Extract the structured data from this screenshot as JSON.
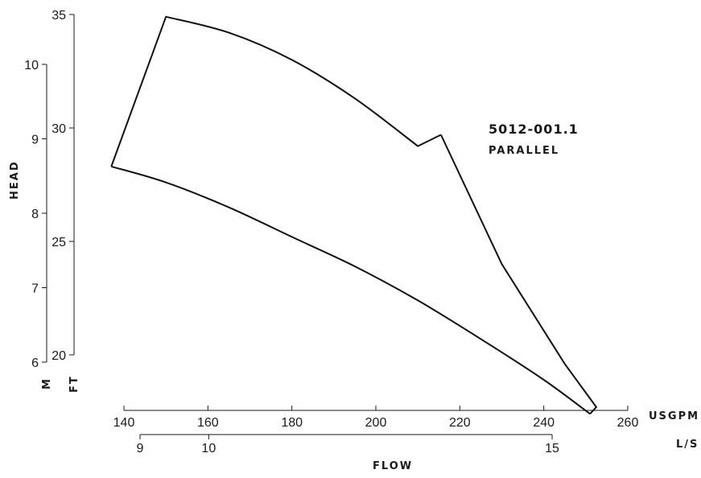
{
  "chart_data": {
    "type": "line",
    "title": "",
    "annotation": {
      "model": "5012-001.1",
      "mode": "PARALLEL"
    },
    "y_title": "HEAD",
    "x_title": "FLOW",
    "y_axes": [
      {
        "unit": "FT",
        "range": [
          20,
          35
        ],
        "ticks": [
          20,
          25,
          30,
          35
        ]
      },
      {
        "unit": "M",
        "range": [
          6,
          10
        ],
        "ticks": [
          6,
          7,
          8,
          9,
          10
        ]
      }
    ],
    "x_axes": [
      {
        "unit": "USGPM",
        "range": [
          140,
          260
        ],
        "ticks": [
          140,
          160,
          180,
          200,
          220,
          240,
          260
        ]
      },
      {
        "unit": "L/S",
        "range": [
          9,
          15
        ],
        "ticks": [
          9,
          10,
          15
        ]
      }
    ],
    "series": [
      {
        "role": "upper-boundary",
        "x_unit": "USGPM",
        "y_unit": "FT",
        "points": [
          [
            137,
            28.3
          ],
          [
            150,
            34.9
          ],
          [
            165,
            34.2
          ],
          [
            180,
            33.0
          ],
          [
            195,
            31.3
          ],
          [
            210,
            29.2
          ],
          [
            215.5,
            29.7
          ]
        ]
      },
      {
        "role": "lower-boundary",
        "x_unit": "USGPM",
        "y_unit": "FT",
        "points": [
          [
            137,
            28.3
          ],
          [
            150,
            27.6
          ],
          [
            165,
            26.5
          ],
          [
            180,
            25.2
          ],
          [
            195,
            23.9
          ],
          [
            210,
            22.4
          ],
          [
            225,
            20.7
          ],
          [
            240,
            18.9
          ],
          [
            251,
            17.4
          ]
        ]
      },
      {
        "role": "right-boundary",
        "x_unit": "USGPM",
        "y_unit": "FT",
        "points": [
          [
            215.5,
            29.7
          ],
          [
            230,
            24.0
          ],
          [
            245,
            19.6
          ],
          [
            252.5,
            17.7
          ],
          [
            251,
            17.4
          ]
        ]
      }
    ]
  }
}
